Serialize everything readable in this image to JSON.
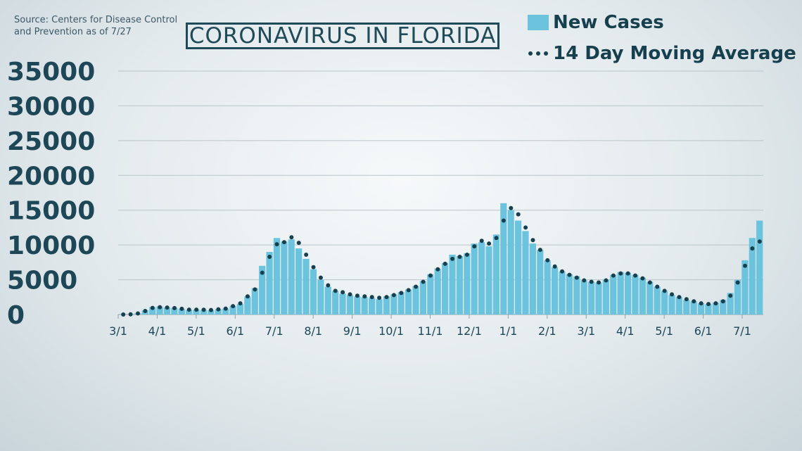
{
  "source": "Source: Centers for Disease Control and Prevention as of 7/27",
  "title": "CORONAVIRUS IN FLORIDA",
  "colors": {
    "bars": "#6cc3de",
    "dots": "#17404e",
    "grid": "#b9c5ca",
    "text": "#1d4757"
  },
  "legend": [
    {
      "label": "New Cases",
      "marker": "bar"
    },
    {
      "label": "14 Day Moving Average",
      "marker": "dots"
    }
  ],
  "chart_data": {
    "type": "bar",
    "title": "CORONAVIRUS IN FLORIDA",
    "xlabel": "",
    "ylabel": "",
    "ylim": [
      0,
      35000
    ],
    "yticks": [
      35000,
      30000,
      25000,
      20000,
      15000,
      10000,
      5000,
      0
    ],
    "xticks": [
      "3/1",
      "4/1",
      "5/1",
      "6/1",
      "7/1",
      "8/1",
      "9/1",
      "10/1",
      "11/1",
      "12/1",
      "1/1",
      "2/1",
      "3/1",
      "4/1",
      "5/1",
      "6/1",
      "7/1"
    ],
    "grid": true,
    "legend_position": "top-right",
    "series": [
      {
        "name": "New Cases",
        "type": "bar",
        "weekly_values": [
          0,
          50,
          180,
          600,
          1050,
          1150,
          1000,
          950,
          800,
          650,
          700,
          650,
          600,
          780,
          850,
          1250,
          1500,
          2600,
          3800,
          7000,
          9000,
          11000,
          10500,
          10800,
          9500,
          8000,
          6500,
          5000,
          4000,
          3400,
          3000,
          2800,
          2600,
          2500,
          2400,
          2200,
          2600,
          2900,
          3200,
          3600,
          4100,
          4800,
          5800,
          6600,
          7400,
          8600,
          8400,
          8800,
          10200,
          10400,
          9800,
          11500,
          16000,
          15000,
          13500,
          12000,
          10200,
          9300,
          7800,
          6800,
          6200,
          5800,
          5500,
          4900,
          4700,
          4600,
          5000,
          5700,
          6100,
          6000,
          5700,
          5300,
          4700,
          4000,
          3400,
          2800,
          2500,
          2100,
          1900,
          1600,
          1500,
          1700,
          2100,
          3100,
          5000,
          7800,
          11000,
          13500
        ]
      },
      {
        "name": "14 Day Moving Average",
        "type": "dotted-line",
        "weekly_values": [
          0,
          30,
          150,
          500,
          950,
          1050,
          1000,
          920,
          820,
          700,
          700,
          680,
          650,
          750,
          850,
          1200,
          1600,
          2600,
          3600,
          6000,
          8300,
          10100,
          10400,
          11100,
          10300,
          8600,
          6800,
          5300,
          4200,
          3400,
          3200,
          2900,
          2700,
          2600,
          2500,
          2400,
          2500,
          2800,
          3100,
          3500,
          4000,
          4700,
          5600,
          6500,
          7300,
          8000,
          8300,
          8600,
          9800,
          10600,
          10200,
          11000,
          13500,
          15300,
          14400,
          12500,
          10700,
          9300,
          7800,
          6900,
          6200,
          5700,
          5300,
          4900,
          4700,
          4600,
          4900,
          5600,
          5900,
          5900,
          5600,
          5200,
          4600,
          4000,
          3400,
          2900,
          2500,
          2200,
          1900,
          1600,
          1500,
          1600,
          1900,
          2700,
          4600,
          7000,
          9500,
          10500
        ]
      }
    ]
  }
}
